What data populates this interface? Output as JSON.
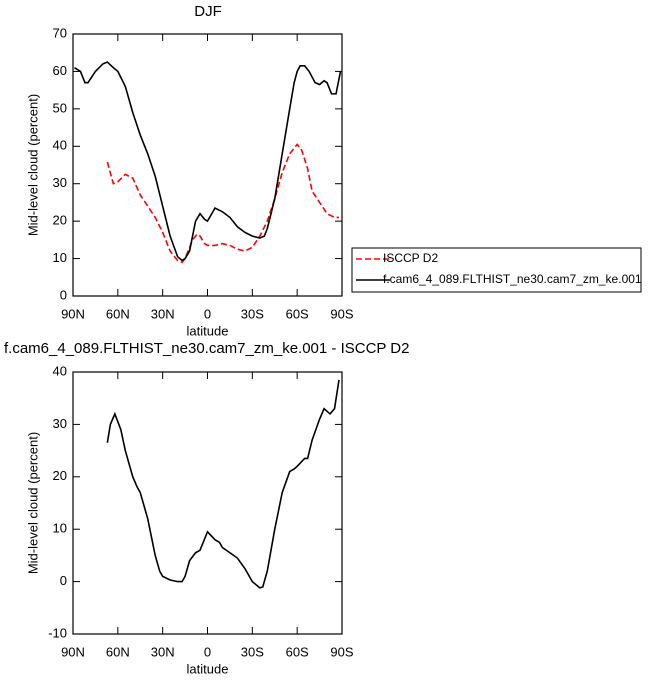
{
  "chart_data": [
    {
      "type": "line",
      "title": "DJF",
      "xlabel": "latitude",
      "ylabel": "Mid-level cloud (percent)",
      "xlim": [
        90,
        -90
      ],
      "xticks": [
        {
          "value": 90,
          "label": "90N"
        },
        {
          "value": 60,
          "label": "60N"
        },
        {
          "value": 30,
          "label": "30N"
        },
        0,
        {
          "value": -30,
          "label": "30S"
        },
        {
          "value": -60,
          "label": "60S"
        },
        {
          "value": -90,
          "label": "90S"
        }
      ],
      "ylim": [
        0,
        70
      ],
      "yticks": [
        0,
        10,
        20,
        30,
        40,
        50,
        60,
        70
      ],
      "legend": "outside-right",
      "series": [
        {
          "name": "ISCCP D2",
          "color": "#ff0000",
          "dashed": true,
          "x": [
            67,
            63,
            60,
            55,
            50,
            45,
            40,
            35,
            30,
            25,
            20,
            17,
            15,
            10,
            7,
            5,
            2,
            0,
            -5,
            -10,
            -15,
            -20,
            -25,
            -30,
            -35,
            -40,
            -45,
            -50,
            -55,
            -60,
            -63,
            -67,
            -70,
            -75,
            -80,
            -85,
            -88
          ],
          "values": [
            35.8,
            30,
            30.5,
            32.5,
            31.5,
            27,
            24,
            21,
            17,
            12,
            9.5,
            9,
            10,
            15,
            16.5,
            16,
            14,
            13.5,
            13.5,
            14,
            13.5,
            12.5,
            12,
            13,
            16,
            20,
            26,
            33,
            38,
            40.5,
            39,
            34,
            28,
            25,
            22,
            21,
            21
          ]
        },
        {
          "name": "f.cam6_4_089.FLTHIST_ne30.cam7_zm_ke.001",
          "color": "#000000",
          "dashed": false,
          "x": [
            89,
            87,
            85,
            82,
            80,
            75,
            70,
            67,
            63,
            60,
            55,
            50,
            45,
            40,
            35,
            30,
            25,
            20,
            17,
            15,
            12,
            8,
            5,
            2,
            0,
            -5,
            -10,
            -15,
            -20,
            -25,
            -30,
            -35,
            -38,
            -40,
            -45,
            -50,
            -55,
            -58,
            -60,
            -62,
            -65,
            -68,
            -72,
            -75,
            -78,
            -80,
            -83,
            -86,
            -89
          ],
          "values": [
            61,
            60.5,
            60,
            57,
            57,
            60,
            62,
            62.5,
            61,
            60,
            56,
            49,
            43,
            38,
            32,
            24,
            16,
            10.5,
            9.5,
            10,
            12,
            20,
            22,
            20.5,
            20,
            23.5,
            22.5,
            21,
            18.5,
            17,
            16,
            15.5,
            16,
            18,
            26,
            38,
            50,
            57,
            60,
            61.5,
            61.5,
            60,
            57,
            56.5,
            57.5,
            57,
            54,
            54,
            60
          ]
        }
      ]
    },
    {
      "type": "line",
      "title": "f.cam6_4_089.FLTHIST_ne30.cam7_zm_ke.001 - ISCCP D2",
      "xlabel": "latitude",
      "ylabel": "Mid-level cloud (percent)",
      "xlim": [
        90,
        -90
      ],
      "xticks": [
        {
          "value": 90,
          "label": "90N"
        },
        {
          "value": 60,
          "label": "60N"
        },
        {
          "value": 30,
          "label": "30N"
        },
        0,
        {
          "value": -30,
          "label": "30S"
        },
        {
          "value": -60,
          "label": "60S"
        },
        {
          "value": -90,
          "label": "90S"
        }
      ],
      "ylim": [
        -10,
        40
      ],
      "yticks": [
        -10,
        0,
        10,
        20,
        30,
        40
      ],
      "series": [
        {
          "color": "#000000",
          "dashed": false,
          "x": [
            67,
            65,
            62,
            58,
            55,
            50,
            47,
            45,
            40,
            35,
            32,
            30,
            25,
            20,
            17,
            15,
            12,
            8,
            5,
            0,
            -5,
            -8,
            -10,
            -15,
            -20,
            -25,
            -30,
            -35,
            -37,
            -40,
            -45,
            -50,
            -55,
            -58,
            -60,
            -65,
            -67,
            -70,
            -75,
            -78,
            -82,
            -85,
            -88
          ],
          "values": [
            26.5,
            30,
            32,
            29,
            25,
            20,
            18,
            17,
            12,
            5,
            2,
            1,
            0.3,
            0,
            0,
            1,
            4,
            5.5,
            6,
            9.5,
            8,
            7.5,
            6.5,
            5.5,
            4.5,
            2.5,
            0,
            -1.2,
            -1,
            2,
            10,
            17,
            21,
            21.5,
            22,
            23.5,
            23.5,
            27,
            31,
            33,
            32,
            33,
            38.5
          ]
        }
      ]
    }
  ]
}
